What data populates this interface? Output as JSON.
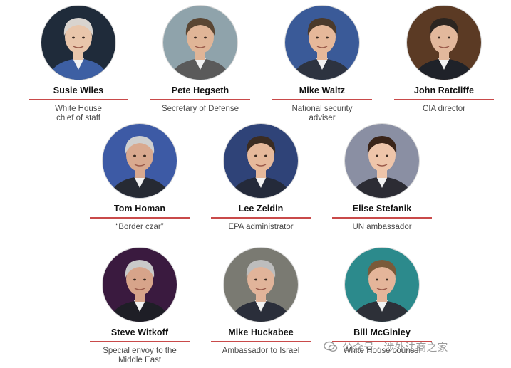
{
  "people": [
    {
      "name": "Susie Wiles",
      "role": "White House\nchief of staff",
      "bg": "#1f2b3a",
      "skin": "#e9c6ab",
      "hair": "#d9d4cf",
      "suit": "#3d5fa3"
    },
    {
      "name": "Pete Hegseth",
      "role": "Secretary of Defense",
      "bg": "#8fa3ab",
      "skin": "#e0b597",
      "hair": "#5a4633",
      "suit": "#5a5a5a"
    },
    {
      "name": "Mike Waltz",
      "role": "National security\nadviser",
      "bg": "#3a5a98",
      "skin": "#e6b89a",
      "hair": "#4b3a2c",
      "suit": "#2d3340"
    },
    {
      "name": "John Ratcliffe",
      "role": "CIA director",
      "bg": "#5b3a24",
      "skin": "#e2b89c",
      "hair": "#2c2520",
      "suit": "#1f2229"
    },
    {
      "name": "Tom Homan",
      "role": "“Border czar”",
      "bg": "#3d5aa5",
      "skin": "#d9a98f",
      "hair": "#cfcfcf",
      "suit": "#262a33"
    },
    {
      "name": "Lee Zeldin",
      "role": "EPA administrator",
      "bg": "#2f4378",
      "skin": "#e6b99b",
      "hair": "#3b2c22",
      "suit": "#242a3a"
    },
    {
      "name": "Elise Stefanik",
      "role": "UN ambassador",
      "bg": "#8a8fa3",
      "skin": "#eec5aa",
      "hair": "#3a2418",
      "suit": "#2c2c34"
    },
    {
      "name": "Steve Witkoff",
      "role": "Special envoy to the\nMiddle East",
      "bg": "#3a1a3f",
      "skin": "#d7a48a",
      "hair": "#c9c9c9",
      "suit": "#1e1e26"
    },
    {
      "name": "Mike Huckabee",
      "role": "Ambassador to Israel",
      "bg": "#7a7a72",
      "skin": "#e1b49a",
      "hair": "#bdbdbd",
      "suit": "#2a2e3a"
    },
    {
      "name": "Bill McGinley",
      "role": "White House counsel",
      "bg": "#2c8a8c",
      "skin": "#e4b59a",
      "hair": "#7a5a3a",
      "suit": "#2d3038"
    }
  ],
  "watermark": {
    "text": "公众号 · 涉外法商之家"
  },
  "accent_color": "#c94a4a"
}
